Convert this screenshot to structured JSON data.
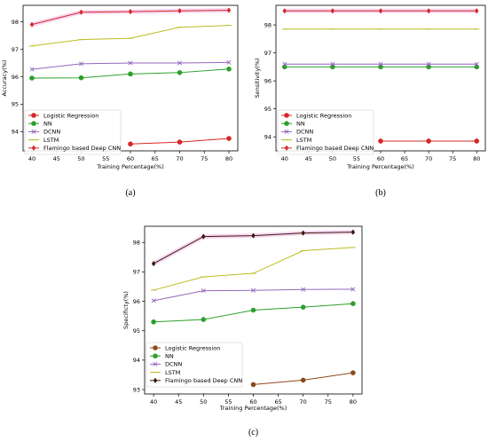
{
  "chart_data": [
    {
      "type": "line",
      "caption": "(a)",
      "xlabel": "Training Percentage(%)",
      "ylabel": "Accuracy(%)",
      "x": [
        40,
        50,
        60,
        70,
        80
      ],
      "xticks": [
        "40",
        "45",
        "50",
        "55",
        "60",
        "65",
        "70",
        "75",
        "80"
      ],
      "yticks": [
        "94",
        "95",
        "96",
        "97",
        "98"
      ],
      "ylim": [
        93.3,
        98.6
      ],
      "legend_position": "lower-left",
      "series": [
        {
          "name": "Logistic Regression",
          "color": "#d62728",
          "marker": "o",
          "values": [
            null,
            null,
            93.55,
            93.62,
            93.75
          ]
        },
        {
          "name": "NN",
          "color": "#2ca02c",
          "marker": "o",
          "values": [
            95.95,
            95.96,
            96.1,
            96.15,
            96.28
          ]
        },
        {
          "name": "DCNN",
          "color": "#9467bd",
          "marker": "x",
          "values": [
            96.27,
            96.47,
            96.5,
            96.5,
            96.52
          ]
        },
        {
          "name": "LSTM",
          "color": "#bcbd22",
          "marker": "_",
          "values": [
            97.12,
            97.35,
            97.4,
            97.8,
            97.87
          ]
        },
        {
          "name": "Flamingo based Deep CNN",
          "color": "#d62728",
          "marker": "d",
          "values": [
            97.9,
            98.35,
            98.37,
            98.4,
            98.42
          ]
        }
      ]
    },
    {
      "type": "line",
      "caption": "(b)",
      "xlabel": "Training Percentage(%)",
      "ylabel": "Sensitivity(%)",
      "x": [
        40,
        50,
        60,
        70,
        80
      ],
      "xticks": [
        "40",
        "45",
        "50",
        "55",
        "60",
        "65",
        "70",
        "75",
        "80"
      ],
      "yticks": [
        "94",
        "95",
        "96",
        "97",
        "98"
      ],
      "ylim": [
        93.5,
        98.7
      ],
      "legend_position": "lower-left",
      "series": [
        {
          "name": "Logistic Regression",
          "color": "#d62728",
          "marker": "o",
          "values": [
            null,
            null,
            93.85,
            93.85,
            93.85
          ]
        },
        {
          "name": "NN",
          "color": "#2ca02c",
          "marker": "o",
          "values": [
            96.5,
            96.5,
            96.5,
            96.5,
            96.5
          ]
        },
        {
          "name": "DCNN",
          "color": "#9467bd",
          "marker": "x",
          "values": [
            96.6,
            96.6,
            96.6,
            96.6,
            96.6
          ]
        },
        {
          "name": "LSTM",
          "color": "#bcbd22",
          "marker": "_",
          "values": [
            97.85,
            97.85,
            97.85,
            97.85,
            97.85
          ]
        },
        {
          "name": "Flamingo based Deep CNN",
          "color": "#d62728",
          "marker": "d",
          "values": [
            98.5,
            98.5,
            98.5,
            98.5,
            98.5
          ]
        }
      ]
    },
    {
      "type": "line",
      "caption": "(c)",
      "xlabel": "Training Percentage(%)",
      "ylabel": "Specificty(%)",
      "x": [
        40,
        50,
        60,
        70,
        80
      ],
      "xticks": [
        "40",
        "45",
        "50",
        "55",
        "60",
        "65",
        "70",
        "75",
        "80"
      ],
      "yticks": [
        "93",
        "94",
        "95",
        "96",
        "97",
        "98"
      ],
      "ylim": [
        92.85,
        98.55
      ],
      "legend_position": "lower-left",
      "series": [
        {
          "name": "Logistic Regression",
          "color": "#8c4a1a",
          "marker": "o",
          "values": [
            null,
            null,
            93.17,
            93.32,
            93.57
          ]
        },
        {
          "name": "NN",
          "color": "#2ca02c",
          "marker": "o",
          "values": [
            95.3,
            95.38,
            95.7,
            95.8,
            95.92
          ]
        },
        {
          "name": "DCNN",
          "color": "#9467bd",
          "marker": "x",
          "values": [
            96.02,
            96.36,
            96.37,
            96.4,
            96.41
          ]
        },
        {
          "name": "LSTM",
          "color": "#bcbd22",
          "marker": "_",
          "values": [
            96.38,
            96.83,
            96.95,
            97.72,
            97.83
          ]
        },
        {
          "name": "Flamingo based Deep CNN",
          "color": "#3a1a0a",
          "marker": "d",
          "values": [
            97.28,
            98.2,
            98.23,
            98.32,
            98.35
          ]
        }
      ]
    }
  ]
}
